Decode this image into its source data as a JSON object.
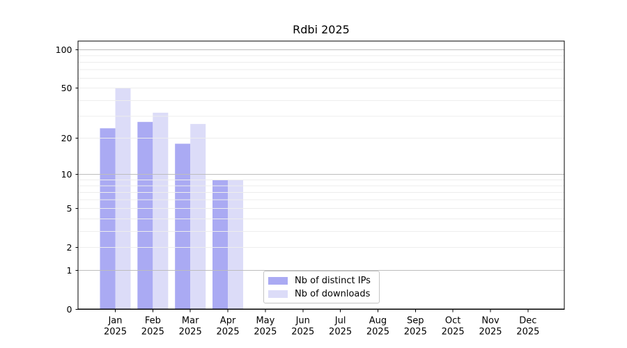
{
  "figure": {
    "background": "#ffffff"
  },
  "chart_data": {
    "type": "bar",
    "title": "Rdbi 2025",
    "x_categories": [
      "Jan 2025",
      "Feb 2025",
      "Mar 2025",
      "Apr 2025",
      "May 2025",
      "Jun 2025",
      "Jul 2025",
      "Aug 2025",
      "Sep 2025",
      "Oct 2025",
      "Nov 2025",
      "Dec 2025"
    ],
    "series": [
      {
        "name": "Nb of distinct IPs",
        "color": "#aaaaf3",
        "values": [
          24,
          27,
          18,
          9,
          0,
          0,
          0,
          0,
          0,
          0,
          0,
          0
        ]
      },
      {
        "name": "Nb of downloads",
        "color": "#dcdcf8",
        "values": [
          50,
          32,
          26,
          9,
          0,
          0,
          0,
          0,
          0,
          0,
          0,
          0
        ]
      }
    ],
    "xlabel": "",
    "ylabel": "",
    "y_ticks": [
      0,
      1,
      2,
      5,
      10,
      20,
      50,
      100
    ],
    "ylim": [
      0,
      117
    ],
    "yscale": "log1p",
    "grid": true,
    "grid_above_bars": true,
    "major_grid_values": [
      1,
      10,
      100
    ],
    "legend_position": "lower center-left inside axes",
    "colors": {
      "major_grid": "#bdbdbd",
      "minor_grid": "#ededed",
      "axis": "#000000",
      "legend_border": "#c4c4c4",
      "text": "#000000"
    }
  }
}
